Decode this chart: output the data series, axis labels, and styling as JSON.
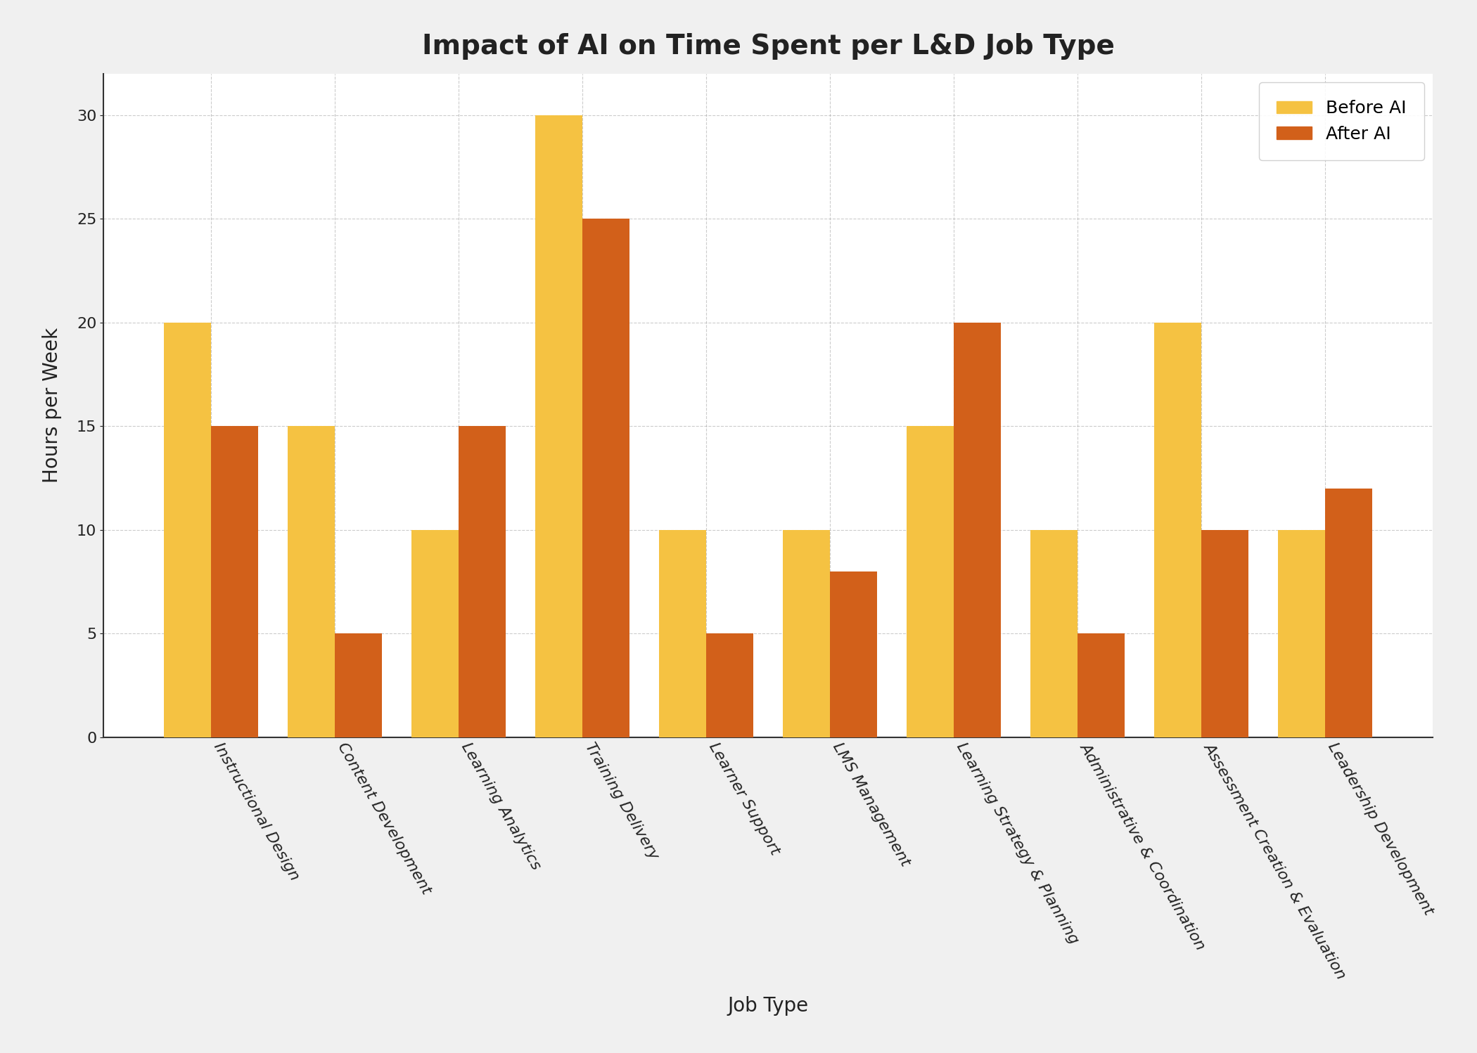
{
  "title": "Impact of AI on Time Spent per L&D Job Type",
  "xlabel": "Job Type",
  "ylabel": "Hours per Week",
  "categories": [
    "Instructional Design",
    "Content Development",
    "Learning Analytics",
    "Training Delivery",
    "Learner Support",
    "LMS Management",
    "Learning Strategy & Planning",
    "Administrative & Coordination",
    "Assessment Creation & Evaluation",
    "Leadership Development"
  ],
  "before_ai": [
    20,
    15,
    10,
    30,
    10,
    10,
    15,
    10,
    20,
    10
  ],
  "after_ai": [
    15,
    5,
    15,
    25,
    5,
    8,
    20,
    5,
    10,
    12
  ],
  "before_color": "#F5C242",
  "after_color": "#D2601A",
  "ylim": [
    0,
    32
  ],
  "yticks": [
    0,
    5,
    10,
    15,
    20,
    25,
    30
  ],
  "legend_labels": [
    "Before AI",
    "After AI"
  ],
  "plot_bg_color": "#FFFFFF",
  "fig_bg_color": "#F0F0F0",
  "grid_color": "#AAAAAA",
  "title_fontsize": 28,
  "axis_label_fontsize": 20,
  "tick_fontsize": 16,
  "legend_fontsize": 18,
  "bar_width": 0.38,
  "label_rotation": -60,
  "label_ha": "left"
}
